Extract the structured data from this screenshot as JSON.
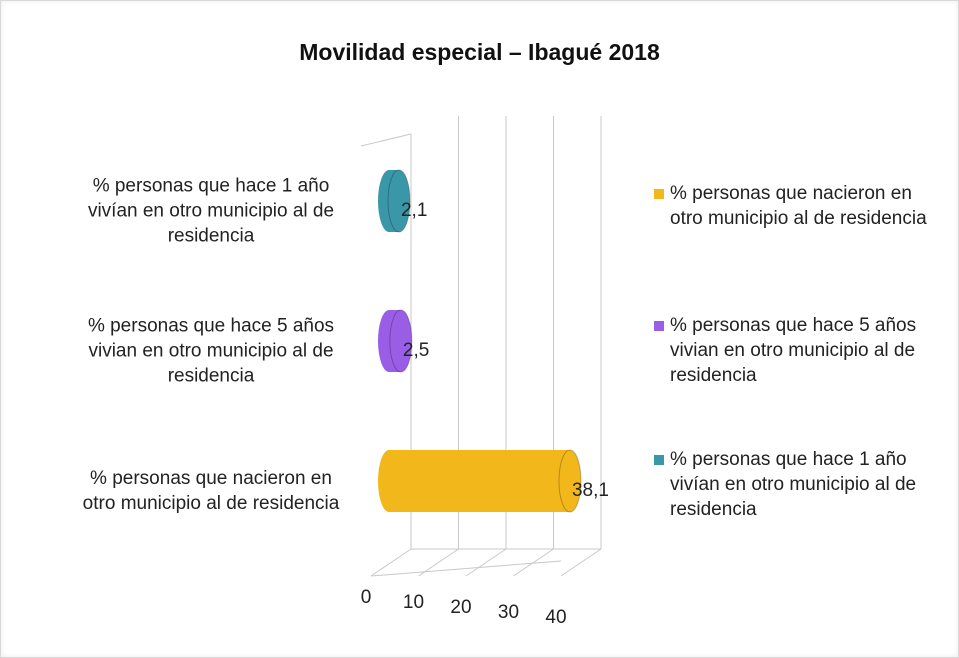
{
  "chart_data": {
    "type": "bar",
    "title": "Movilidad especial – Ibagué 2018",
    "categories": [
      "% personas que nacieron en otro municipio al de residencia",
      "% personas que hace 5 años vivian en otro municipio al de residencia",
      "% personas que hace 1 año vivían en otro municipio al de residencia"
    ],
    "values": [
      38.1,
      2.5,
      2.1
    ],
    "value_labels": [
      "38,1",
      "2,5",
      "2,1"
    ],
    "colors": [
      "#f2b71b",
      "#9a5de6",
      "#3a97a8"
    ],
    "xlim": [
      0,
      40
    ],
    "xticks": [
      0,
      10,
      20,
      30,
      40
    ],
    "grid": true,
    "legend": "right"
  }
}
